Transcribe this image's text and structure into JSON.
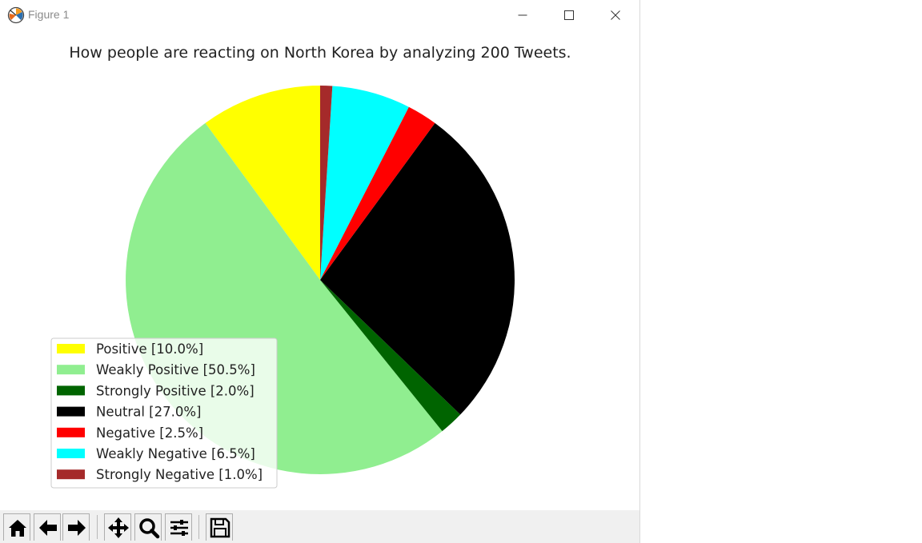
{
  "window": {
    "title": "Figure 1"
  },
  "icons": {
    "app": "matplotlib-logo-icon",
    "minimize": "minimize-icon",
    "maximize": "maximize-icon",
    "close": "close-icon"
  },
  "toolbar": {
    "buttons": [
      "home-icon",
      "back-arrow-icon",
      "forward-arrow-icon",
      "pan-icon",
      "zoom-icon",
      "configure-subplots-icon",
      "save-icon"
    ]
  },
  "chart_data": {
    "type": "pie",
    "title": "How people are reacting on North Korea by analyzing 200 Tweets.",
    "start_angle_deg": 90,
    "direction": "counterclockwise",
    "legend_placement": "lower-left",
    "categories": [
      "Positive",
      "Weakly Positive",
      "Strongly Positive",
      "Neutral",
      "Negative",
      "Weakly Negative",
      "Strongly Negative"
    ],
    "values": [
      10.0,
      50.5,
      2.0,
      27.0,
      2.5,
      6.5,
      1.0
    ],
    "colors": [
      "#ffff00",
      "#90ee90",
      "#006400",
      "#000000",
      "#ff0000",
      "#00ffff",
      "#a52a2a"
    ],
    "legend": [
      "Positive [10.0%]",
      "Weakly Positive [50.5%]",
      "Strongly Positive [2.0%]",
      "Neutral [27.0%]",
      "Negative [2.5%]",
      "Weakly Negative [6.5%]",
      "Strongly Negative [1.0%]"
    ]
  }
}
